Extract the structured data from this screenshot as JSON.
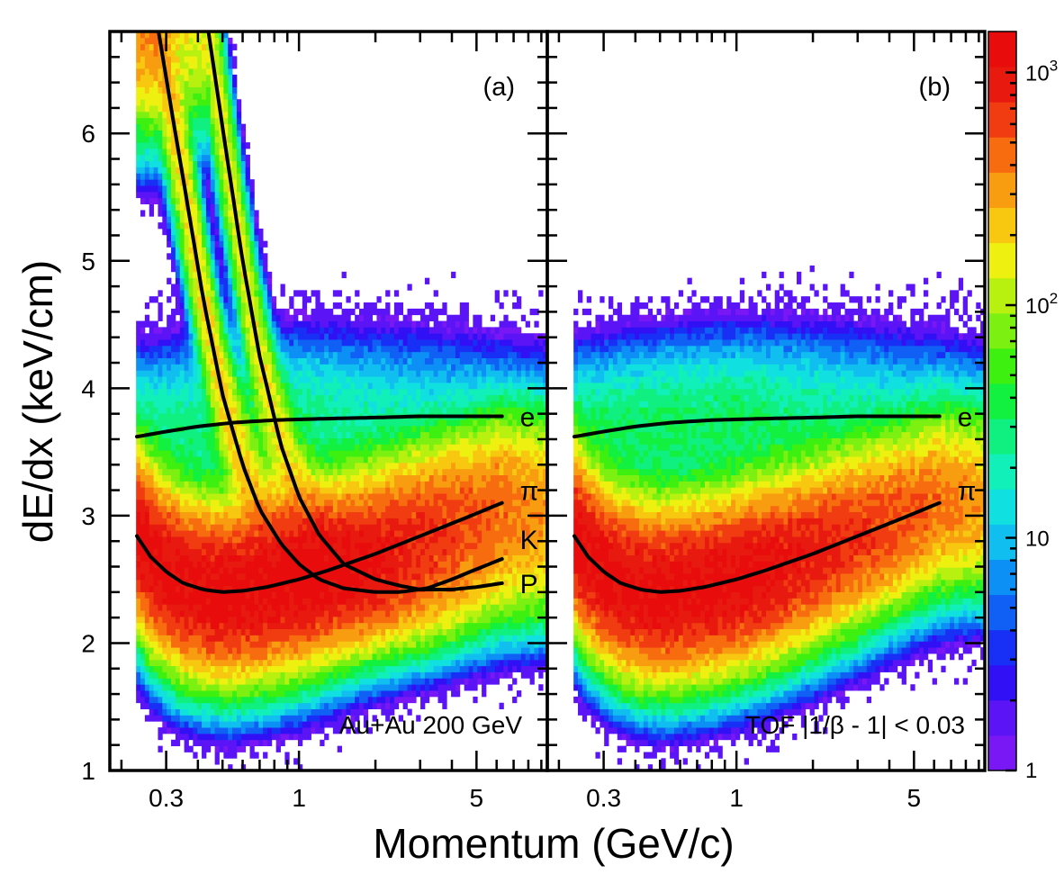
{
  "figure": {
    "xlabel": "Momentum (GeV/c)",
    "ylabel": "dE/dx (keV/cm)"
  },
  "colors": {
    "palette": [
      "#7a17f5",
      "#5a14f5",
      "#3210f5",
      "#1830f5",
      "#1060f5",
      "#0c90f5",
      "#10bff0",
      "#10e0e0",
      "#10f0b8",
      "#10f080",
      "#12f040",
      "#3df010",
      "#7cf010",
      "#b8f010",
      "#eef010",
      "#f8c810",
      "#f89c10",
      "#f86c10",
      "#f03c10",
      "#e81a10",
      "#e80c0c"
    ],
    "frame": "#000000",
    "curve": "#000000"
  },
  "colorbar": {
    "scale": "log",
    "range": [
      1,
      1500
    ],
    "labels": [
      {
        "mantissa": "10",
        "exponent": "3",
        "value": 1000
      },
      {
        "mantissa": "10",
        "exponent": "2",
        "value": 100
      },
      {
        "mantissa": "10",
        "exponent": "",
        "value": 10
      },
      {
        "mantissa": "1",
        "exponent": "",
        "value": 1
      }
    ]
  },
  "chart_data": [
    {
      "type": "heatmap",
      "panel_label": "(a)",
      "annotation": "Au+Au 200 GeV",
      "xscale": "log",
      "xlim": [
        0.18,
        9.5
      ],
      "ylim": [
        1,
        6.8
      ],
      "x_tick_labels": [
        {
          "label": "0.3",
          "value": 0.3
        },
        {
          "label": "1",
          "value": 1
        },
        {
          "label": "5",
          "value": 5
        }
      ],
      "y_tick_labels": [
        {
          "label": "1",
          "value": 1
        },
        {
          "label": "2",
          "value": 2
        },
        {
          "label": "3",
          "value": 3
        },
        {
          "label": "4",
          "value": 4
        },
        {
          "label": "5",
          "value": 5
        },
        {
          "label": "6",
          "value": 6
        }
      ],
      "density_bands": [
        {
          "name": "pi",
          "mean_curve": "pi",
          "width": 0.33,
          "peak_log10": 3.1
        },
        {
          "name": "K",
          "mean_curve": "K",
          "width": 0.25,
          "peak_log10": 2.3
        },
        {
          "name": "P",
          "mean_curve": "P",
          "width": 0.25,
          "peak_log10": 2.2
        },
        {
          "name": "e",
          "mean_curve": "e",
          "width": 0.3,
          "peak_log10": 1.4
        }
      ],
      "series": [
        {
          "name": "e",
          "label": "e",
          "x": [
            0.23,
            0.3,
            0.4,
            0.55,
            0.8,
            1.2,
            2,
            3,
            4.5,
            6.3
          ],
          "y": [
            3.62,
            3.66,
            3.7,
            3.73,
            3.75,
            3.76,
            3.77,
            3.78,
            3.78,
            3.78
          ]
        },
        {
          "name": "pi",
          "label": "π",
          "x": [
            0.23,
            0.26,
            0.3,
            0.35,
            0.42,
            0.5,
            0.6,
            0.75,
            1,
            1.3,
            2,
            3,
            4.5,
            6.3
          ],
          "y": [
            2.84,
            2.68,
            2.56,
            2.47,
            2.42,
            2.4,
            2.41,
            2.44,
            2.5,
            2.57,
            2.7,
            2.84,
            2.98,
            3.1
          ]
        },
        {
          "name": "K",
          "label": "K",
          "x": [
            0.28,
            0.32,
            0.36,
            0.42,
            0.5,
            0.6,
            0.7,
            0.85,
            1,
            1.2,
            1.5,
            2,
            2.5,
            3.2,
            4,
            5,
            6.3
          ],
          "y": [
            6.8,
            6.1,
            5.5,
            4.7,
            3.95,
            3.4,
            3.05,
            2.78,
            2.62,
            2.5,
            2.43,
            2.4,
            2.4,
            2.43,
            2.5,
            2.58,
            2.66
          ]
        },
        {
          "name": "P",
          "label": "P",
          "x": [
            0.44,
            0.5,
            0.6,
            0.7,
            0.85,
            1,
            1.2,
            1.5,
            2,
            2.5,
            3,
            4,
            5,
            6.3
          ],
          "y": [
            6.8,
            6.05,
            5.0,
            4.25,
            3.55,
            3.15,
            2.85,
            2.62,
            2.5,
            2.45,
            2.42,
            2.42,
            2.44,
            2.47
          ]
        }
      ]
    },
    {
      "type": "heatmap",
      "panel_label": "(b)",
      "annotation": "TOF |1/β - 1| < 0.03",
      "xscale": "log",
      "xlim": [
        0.18,
        9.5
      ],
      "ylim": [
        1,
        6.8
      ],
      "x_tick_labels": [
        {
          "label": "0.3",
          "value": 0.3
        },
        {
          "label": "1",
          "value": 1
        },
        {
          "label": "5",
          "value": 5
        }
      ],
      "density_bands": [
        {
          "name": "pi",
          "mean_curve": "pi",
          "width": 0.33,
          "peak_log10": 3.1
        },
        {
          "name": "e",
          "mean_curve": "e",
          "width": 0.3,
          "peak_log10": 1.5
        }
      ],
      "series": [
        {
          "name": "e",
          "label": "e",
          "x": [
            0.23,
            0.3,
            0.4,
            0.55,
            0.8,
            1.2,
            2,
            3,
            4.5,
            6.3
          ],
          "y": [
            3.62,
            3.66,
            3.7,
            3.73,
            3.75,
            3.76,
            3.77,
            3.78,
            3.78,
            3.78
          ]
        },
        {
          "name": "pi",
          "label": "π",
          "x": [
            0.23,
            0.26,
            0.3,
            0.35,
            0.42,
            0.5,
            0.6,
            0.75,
            1,
            1.3,
            2,
            3,
            4.5,
            6.3
          ],
          "y": [
            2.84,
            2.68,
            2.56,
            2.47,
            2.42,
            2.4,
            2.41,
            2.44,
            2.5,
            2.57,
            2.7,
            2.84,
            2.98,
            3.1
          ]
        }
      ]
    }
  ]
}
